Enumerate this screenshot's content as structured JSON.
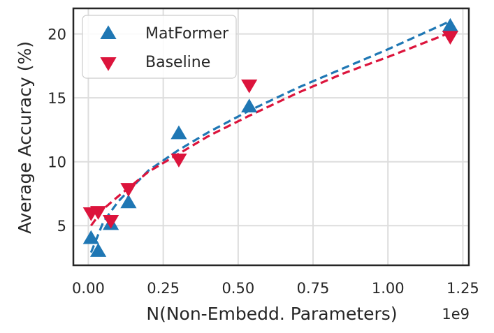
{
  "chart_data": {
    "type": "scatter",
    "xlabel": "N(Non-Embedd. Parameters)",
    "ylabel": "Average Accuracy (%)",
    "x_offset_text": "1e9",
    "xlim": [
      -0.05,
      1.27
    ],
    "ylim": [
      1.9,
      22.0
    ],
    "xticks": [
      0.0,
      0.25,
      0.5,
      0.75,
      1.0,
      1.25
    ],
    "xtick_labels": [
      "0.00",
      "0.25",
      "0.50",
      "0.75",
      "1.00",
      "1.25"
    ],
    "yticks": [
      5,
      10,
      15,
      20
    ],
    "ytick_labels": [
      "5",
      "10",
      "15",
      "20"
    ],
    "grid": true,
    "legend_position": "top-left",
    "series": [
      {
        "name": "MatFormer",
        "marker": "triangle-up",
        "color": "#1f77b4",
        "x": [
          0.009,
          0.033,
          0.075,
          0.134,
          0.302,
          0.537,
          1.208
        ],
        "y": [
          4.0,
          3.0,
          5.1,
          6.8,
          12.2,
          14.3,
          20.6
        ],
        "fit": [
          [
            0.009,
            2.9
          ],
          [
            0.05,
            5.3
          ],
          [
            0.1,
            6.9
          ],
          [
            0.2,
            9.3
          ],
          [
            0.3,
            10.9
          ],
          [
            0.4,
            12.3
          ],
          [
            0.537,
            14.0
          ],
          [
            0.7,
            15.8
          ],
          [
            0.85,
            17.3
          ],
          [
            1.0,
            18.8
          ],
          [
            1.208,
            21.0
          ]
        ]
      },
      {
        "name": "Baseline",
        "marker": "triangle-down",
        "color": "#dc143c",
        "x": [
          0.009,
          0.033,
          0.075,
          0.134,
          0.302,
          0.537,
          1.208
        ],
        "y": [
          6.0,
          6.1,
          5.4,
          7.9,
          10.2,
          16.0,
          19.8
        ],
        "fit": [
          [
            0.009,
            5.0
          ],
          [
            0.05,
            6.3
          ],
          [
            0.1,
            7.3
          ],
          [
            0.2,
            9.2
          ],
          [
            0.3,
            10.6
          ],
          [
            0.4,
            12.0
          ],
          [
            0.537,
            13.6
          ],
          [
            0.7,
            15.4
          ],
          [
            0.85,
            16.9
          ],
          [
            1.0,
            18.2
          ],
          [
            1.208,
            20.1
          ]
        ]
      }
    ]
  }
}
